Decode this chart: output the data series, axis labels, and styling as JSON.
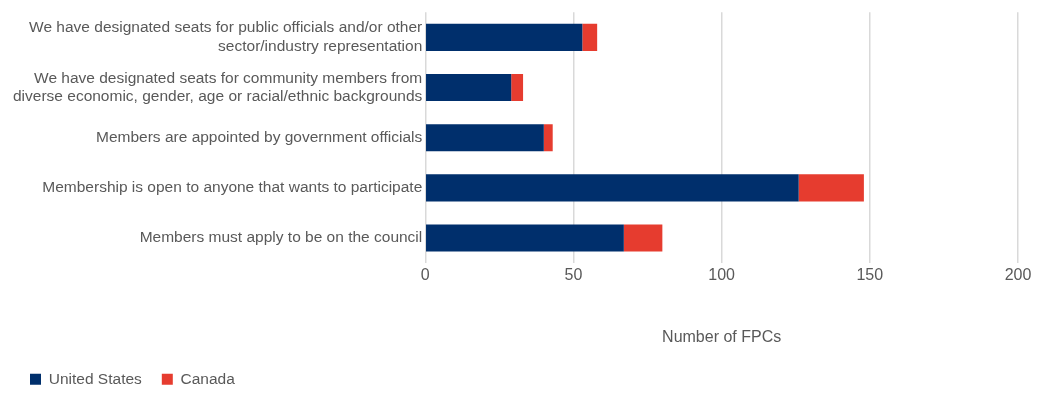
{
  "chart_data": {
    "type": "bar",
    "orientation": "horizontal",
    "stacked": true,
    "categories": [
      "We have designated seats for public officials and/or other sector/industry representation",
      "We have designated seats for community members from diverse economic, gender, age or racial/ethnic backgrounds",
      "Members are appointed by government officials",
      "Membership is open to anyone that wants to participate",
      "Members must apply to be on the council"
    ],
    "series": [
      {
        "name": "United States",
        "color": "#002f6c",
        "values": [
          53,
          29,
          40,
          126,
          67
        ]
      },
      {
        "name": "Canada",
        "color": "#e63c2f",
        "values": [
          5,
          4,
          3,
          22,
          13
        ]
      }
    ],
    "xlabel": "Number of FPCs",
    "xlim": [
      0,
      200
    ],
    "xticks": [
      0,
      50,
      100,
      150,
      200
    ],
    "grid": "x",
    "legend": "bottom left"
  }
}
